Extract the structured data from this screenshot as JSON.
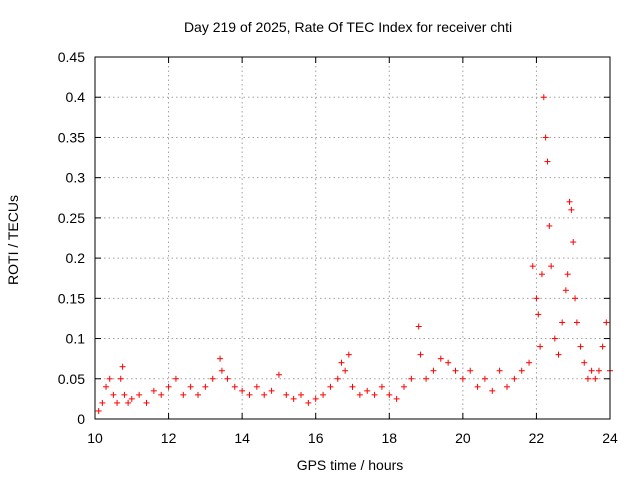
{
  "chart_data": {
    "type": "scatter",
    "title": "Day 219 of 2025, Rate Of TEC Index for receiver chti",
    "xlabel": "GPS time / hours",
    "ylabel": "ROTI / TECUs",
    "xlim": [
      10,
      24
    ],
    "ylim": [
      0,
      0.45
    ],
    "x_ticks": [
      "10",
      "12",
      "14",
      "16",
      "18",
      "20",
      "22",
      "24"
    ],
    "y_ticks": [
      "0",
      "0.05",
      "0.1",
      "0.15",
      "0.2",
      "0.25",
      "0.3",
      "0.35",
      "0.4",
      "0.45"
    ],
    "grid": true,
    "marker": "plus",
    "color": "#ff0000",
    "series": [
      {
        "x": [
          10.1,
          10.2,
          10.3,
          10.4,
          10.5,
          10.6,
          10.7,
          10.75,
          10.8,
          10.9,
          11.0,
          11.2,
          11.4,
          11.6,
          11.8,
          12.0,
          12.2,
          12.4,
          12.6,
          12.8,
          13.0,
          13.2,
          13.4,
          13.45,
          13.6,
          13.8,
          14.0,
          14.2,
          14.4,
          14.6,
          14.8,
          15.0,
          15.2,
          15.4,
          15.6,
          15.8,
          16.0,
          16.2,
          16.4,
          16.6,
          16.7,
          16.8,
          16.9,
          17.0,
          17.2,
          17.4,
          17.6,
          17.8,
          18.0,
          18.2,
          18.4,
          18.6,
          18.8,
          18.85,
          19.0,
          19.2,
          19.4,
          19.6,
          19.8,
          20.0,
          20.2,
          20.4,
          20.6,
          20.8,
          21.0,
          21.2,
          21.4,
          21.6,
          21.8,
          21.9,
          22.0,
          22.05,
          22.1,
          22.15,
          22.2,
          22.25,
          22.3,
          22.35,
          22.4,
          22.5,
          22.6,
          22.7,
          22.8,
          22.85,
          22.9,
          22.95,
          23.0,
          23.05,
          23.1,
          23.2,
          23.3,
          23.4,
          23.5,
          23.6,
          23.7,
          23.8,
          23.9,
          24.0
        ],
        "y": [
          0.01,
          0.02,
          0.04,
          0.05,
          0.03,
          0.02,
          0.05,
          0.065,
          0.03,
          0.02,
          0.025,
          0.03,
          0.02,
          0.035,
          0.03,
          0.04,
          0.05,
          0.03,
          0.04,
          0.03,
          0.04,
          0.05,
          0.075,
          0.06,
          0.05,
          0.04,
          0.035,
          0.03,
          0.04,
          0.03,
          0.035,
          0.055,
          0.03,
          0.025,
          0.03,
          0.02,
          0.025,
          0.03,
          0.04,
          0.05,
          0.07,
          0.06,
          0.08,
          0.04,
          0.03,
          0.035,
          0.03,
          0.04,
          0.03,
          0.025,
          0.04,
          0.05,
          0.115,
          0.08,
          0.05,
          0.06,
          0.075,
          0.07,
          0.06,
          0.05,
          0.06,
          0.04,
          0.05,
          0.035,
          0.06,
          0.04,
          0.05,
          0.06,
          0.07,
          0.19,
          0.15,
          0.13,
          0.09,
          0.18,
          0.4,
          0.35,
          0.32,
          0.24,
          0.19,
          0.1,
          0.08,
          0.12,
          0.16,
          0.18,
          0.27,
          0.26,
          0.22,
          0.15,
          0.12,
          0.09,
          0.07,
          0.05,
          0.06,
          0.05,
          0.06,
          0.09,
          0.12,
          0.06
        ]
      }
    ]
  }
}
